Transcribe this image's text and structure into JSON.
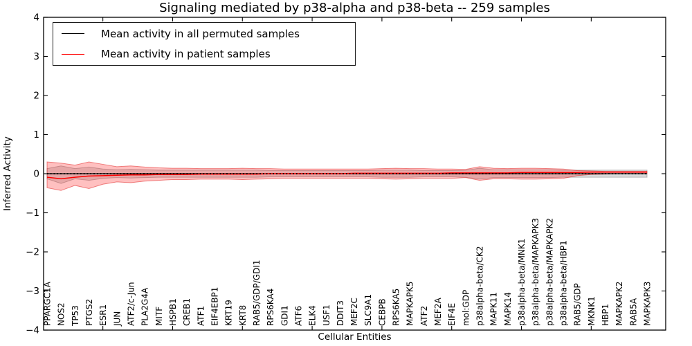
{
  "figure": {
    "title": "Signaling mediated by p38-alpha and p38-beta -- 259 samples",
    "xlabel": "Cellular Entities",
    "ylabel": "Inferred Activity"
  },
  "legend": {
    "position": "upper left",
    "items": [
      {
        "label": "Mean activity in all permuted samples",
        "color": "#000000"
      },
      {
        "label": "Mean activity in patient samples",
        "color": "#ff0000"
      }
    ]
  },
  "axis": {
    "yticks": [
      {
        "label": "4",
        "value": 4
      },
      {
        "label": "3",
        "value": 3
      },
      {
        "label": "2",
        "value": 2
      },
      {
        "label": "1",
        "value": 1
      },
      {
        "label": "0",
        "value": 0
      },
      {
        "label": "−1",
        "value": -1
      },
      {
        "label": "−2",
        "value": -2
      },
      {
        "label": "−3",
        "value": -3
      },
      {
        "label": "−4",
        "value": -4
      }
    ],
    "xtick_values": [
      5,
      10,
      15,
      20,
      25,
      30,
      35,
      40
    ]
  },
  "chart_data": {
    "type": "line",
    "title": "Signaling mediated by p38-alpha and p38-beta -- 259 samples",
    "xlabel": "Cellular Entities",
    "ylabel": "Inferred Activity",
    "ylim": [
      -4,
      4
    ],
    "grid": false,
    "legend_position": "upper left",
    "categories": [
      "PPARGC1A",
      "NOS2",
      "TP53",
      "PTGS2",
      "ESR1",
      "JUN",
      "ATF2/c-Jun",
      "PLA2G4A",
      "MITF",
      "HSPB1",
      "CREB1",
      "ATF1",
      "EIF4EBP1",
      "KRT19",
      "KRT8",
      "RAB5/GDP/GDI1",
      "RPS6KA4",
      "GDI1",
      "ATF6",
      "ELK4",
      "USF1",
      "DDIT3",
      "MEF2C",
      "SLC9A1",
      "CEBPB",
      "RPS6KA5",
      "MAPKAPK5",
      "ATF2",
      "MEF2A",
      "EIF4E",
      "mol:GDP",
      "p38alpha-beta/CK2",
      "MAPK11",
      "MAPK14",
      "p38alpha-beta/MNK1",
      "p38alpha-beta/MAPKAPK3",
      "p38alpha-beta/MAPKAPK2",
      "p38alpha-beta/HBP1",
      "RAB5/GDP",
      "MKNK1",
      "HBP1",
      "MAPKAPK2",
      "RAB5A",
      "MAPKAPK3"
    ],
    "series": [
      {
        "name": "Mean activity in all permuted samples",
        "color": "#000000",
        "style": "solid with dotted marker overlay",
        "values": [
          0,
          0,
          0,
          0,
          0,
          0,
          0,
          0,
          0,
          0,
          0,
          0,
          0,
          0,
          0,
          0,
          0,
          0,
          0,
          0,
          0,
          0,
          0,
          0,
          0,
          0,
          0,
          0,
          0,
          0,
          0,
          0,
          0,
          0,
          0,
          0,
          0,
          0,
          0,
          0,
          0,
          0,
          0,
          0
        ]
      },
      {
        "name": "Mean activity in patient samples",
        "color": "#ff0000",
        "style": "solid",
        "values": [
          -0.09,
          -0.13,
          -0.09,
          -0.06,
          -0.05,
          -0.04,
          -0.03,
          -0.03,
          -0.02,
          -0.02,
          -0.02,
          -0.01,
          -0.01,
          -0.01,
          -0.01,
          -0.01,
          0,
          0,
          0,
          0,
          0,
          0,
          0.01,
          0.01,
          0.01,
          0.01,
          0.01,
          0.01,
          0.01,
          0.02,
          0.02,
          0.02,
          0.02,
          0.02,
          0.03,
          0.03,
          0.03,
          0.03,
          0.03,
          0.04,
          0.04,
          0.04,
          0.04,
          0.04
        ]
      }
    ],
    "bands": [
      {
        "name": "permuted samples activity range",
        "fill": "rgba(128,128,128,0.27)",
        "edge": "rgba(110,110,110,0.45)",
        "upper": [
          0.13,
          0.2,
          0.13,
          0.17,
          0.12,
          0.1,
          0.11,
          0.1,
          0.09,
          0.09,
          0.09,
          0.09,
          0.09,
          0.09,
          0.09,
          0.09,
          0.08,
          0.08,
          0.08,
          0.08,
          0.08,
          0.08,
          0.08,
          0.08,
          0.09,
          0.09,
          0.09,
          0.08,
          0.08,
          0.08,
          0.09,
          0.14,
          0.1,
          0.1,
          0.1,
          0.1,
          0.1,
          0.09,
          0.09,
          0.09,
          0.09,
          0.09,
          0.09,
          0.09
        ],
        "lower": [
          -0.13,
          -0.25,
          -0.13,
          -0.17,
          -0.12,
          -0.1,
          -0.11,
          -0.1,
          -0.09,
          -0.09,
          -0.09,
          -0.09,
          -0.09,
          -0.09,
          -0.09,
          -0.09,
          -0.08,
          -0.08,
          -0.08,
          -0.08,
          -0.08,
          -0.08,
          -0.08,
          -0.08,
          -0.09,
          -0.09,
          -0.09,
          -0.08,
          -0.08,
          -0.08,
          -0.09,
          -0.14,
          -0.1,
          -0.1,
          -0.1,
          -0.1,
          -0.1,
          -0.09,
          -0.09,
          -0.09,
          -0.09,
          -0.09,
          -0.09,
          -0.09
        ]
      },
      {
        "name": "patient samples activity range",
        "fill": "rgba(255,30,30,0.28)",
        "edge": "rgba(220,0,0,0.45)",
        "upper": [
          0.3,
          0.27,
          0.22,
          0.3,
          0.24,
          0.18,
          0.2,
          0.17,
          0.15,
          0.14,
          0.14,
          0.13,
          0.13,
          0.13,
          0.14,
          0.13,
          0.13,
          0.12,
          0.12,
          0.12,
          0.12,
          0.12,
          0.12,
          0.12,
          0.13,
          0.14,
          0.13,
          0.13,
          0.12,
          0.12,
          0.11,
          0.18,
          0.14,
          0.13,
          0.14,
          0.14,
          0.13,
          0.12,
          0.08,
          0.07,
          0.06,
          0.06,
          0.06,
          0.06
        ],
        "lower": [
          -0.36,
          -0.43,
          -0.3,
          -0.38,
          -0.27,
          -0.21,
          -0.23,
          -0.19,
          -0.17,
          -0.15,
          -0.15,
          -0.14,
          -0.14,
          -0.14,
          -0.15,
          -0.14,
          -0.13,
          -0.12,
          -0.12,
          -0.12,
          -0.12,
          -0.12,
          -0.12,
          -0.12,
          -0.13,
          -0.14,
          -0.13,
          -0.12,
          -0.12,
          -0.12,
          -0.1,
          -0.17,
          -0.13,
          -0.13,
          -0.14,
          -0.14,
          -0.13,
          -0.12,
          -0.05,
          -0.02,
          -0.01,
          0.0,
          0.0,
          0.0
        ]
      }
    ]
  }
}
